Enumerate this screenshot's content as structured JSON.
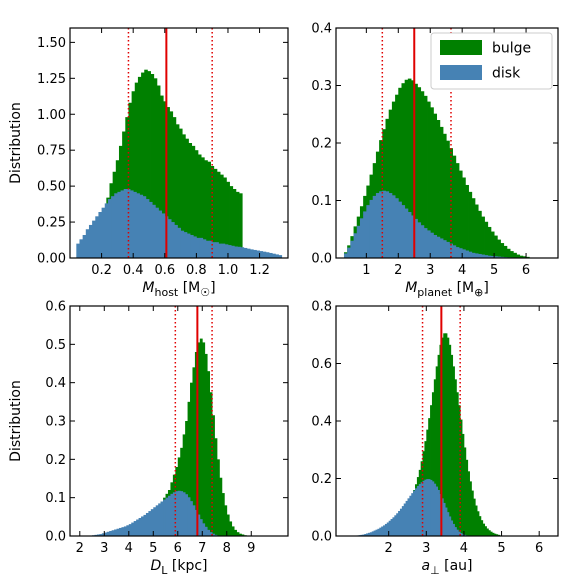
{
  "colors": {
    "bulge": "#008000",
    "disk": "#4682b4",
    "median": "#e00000",
    "frame": "#000000"
  },
  "legend": {
    "placement": "top-right",
    "entries": [
      "bulge",
      "disk"
    ]
  },
  "ylabel": "Distribution",
  "chart_data": [
    {
      "type": "bar",
      "xlabel_main": "M",
      "xlabel_sub": "host",
      "xlabel_tail": "[M",
      "xlabel_sym": "☉",
      "xlabel_end": "]",
      "xlim": [
        0.0,
        1.38
      ],
      "ylim": [
        0.0,
        1.6
      ],
      "xticks": [
        0.2,
        0.4,
        0.6,
        0.8,
        1.0,
        1.2
      ],
      "xticklabels": [
        "0.2",
        "0.4",
        "0.6",
        "0.8",
        "1.0",
        "1.2"
      ],
      "yticks": [
        0.0,
        0.25,
        0.5,
        0.75,
        1.0,
        1.25,
        1.5
      ],
      "yticklabels": [
        "0.00",
        "0.25",
        "0.50",
        "0.75",
        "1.00",
        "1.25",
        "1.50"
      ],
      "bin_width": 0.02,
      "bulge_x": [
        0.22,
        0.24,
        0.26,
        0.28,
        0.3,
        0.32,
        0.34,
        0.36,
        0.38,
        0.4,
        0.42,
        0.44,
        0.46,
        0.48,
        0.5,
        0.52,
        0.54,
        0.56,
        0.58,
        0.6,
        0.62,
        0.64,
        0.66,
        0.68,
        0.7,
        0.72,
        0.74,
        0.76,
        0.78,
        0.8,
        0.82,
        0.84,
        0.86,
        0.88,
        0.9,
        0.92,
        0.94,
        0.96,
        0.98,
        1.0,
        1.02,
        1.04,
        1.06,
        1.08
      ],
      "bulge_y": [
        0.3,
        0.42,
        0.52,
        0.6,
        0.68,
        0.78,
        0.88,
        0.98,
        1.08,
        1.16,
        1.22,
        1.26,
        1.29,
        1.31,
        1.3,
        1.28,
        1.25,
        1.2,
        1.13,
        1.09,
        1.05,
        1.02,
        0.98,
        0.93,
        0.9,
        0.86,
        0.83,
        0.8,
        0.78,
        0.75,
        0.72,
        0.7,
        0.68,
        0.67,
        0.64,
        0.62,
        0.6,
        0.58,
        0.56,
        0.53,
        0.5,
        0.48,
        0.46,
        0.45
      ],
      "disk_x": [
        0.05,
        0.07,
        0.09,
        0.11,
        0.13,
        0.15,
        0.17,
        0.19,
        0.21,
        0.23,
        0.25,
        0.27,
        0.29,
        0.31,
        0.33,
        0.35,
        0.37,
        0.39,
        0.41,
        0.43,
        0.45,
        0.47,
        0.49,
        0.51,
        0.53,
        0.55,
        0.57,
        0.59,
        0.61,
        0.63,
        0.65,
        0.67,
        0.69,
        0.71,
        0.73,
        0.75,
        0.77,
        0.79,
        0.81,
        0.83,
        0.85,
        0.87,
        0.89,
        0.91,
        0.93,
        0.95,
        0.97,
        0.99,
        1.01,
        1.03,
        1.05,
        1.07,
        1.09,
        1.11,
        1.13,
        1.15,
        1.17,
        1.19,
        1.21,
        1.23,
        1.25,
        1.27,
        1.29,
        1.31,
        1.33
      ],
      "disk_y": [
        0.1,
        0.13,
        0.16,
        0.2,
        0.23,
        0.26,
        0.29,
        0.32,
        0.35,
        0.38,
        0.41,
        0.43,
        0.45,
        0.46,
        0.47,
        0.48,
        0.48,
        0.47,
        0.46,
        0.45,
        0.44,
        0.43,
        0.41,
        0.39,
        0.37,
        0.35,
        0.33,
        0.31,
        0.29,
        0.27,
        0.25,
        0.23,
        0.21,
        0.19,
        0.18,
        0.17,
        0.16,
        0.15,
        0.14,
        0.14,
        0.13,
        0.12,
        0.12,
        0.11,
        0.11,
        0.1,
        0.1,
        0.095,
        0.09,
        0.085,
        0.08,
        0.078,
        0.075,
        0.07,
        0.065,
        0.06,
        0.056,
        0.052,
        0.048,
        0.044,
        0.04,
        0.035,
        0.03,
        0.025,
        0.02
      ],
      "median": 0.61,
      "percentiles": [
        0.37,
        0.9
      ]
    },
    {
      "type": "bar",
      "xlabel_main": "M",
      "xlabel_sub": "planet",
      "xlabel_tail": "[M",
      "xlabel_sym": "⊕",
      "xlabel_end": "]",
      "xlim": [
        0.05,
        7.0
      ],
      "ylim": [
        0.0,
        0.4
      ],
      "xticks": [
        1,
        2,
        3,
        4,
        5,
        6
      ],
      "xticklabels": [
        "1",
        "2",
        "3",
        "4",
        "5",
        "6"
      ],
      "yticks": [
        0.0,
        0.1,
        0.2,
        0.3,
        0.4
      ],
      "yticklabels": [
        "0.0",
        "0.1",
        "0.2",
        "0.3",
        "0.4"
      ],
      "bin_width": 0.1,
      "bulge_x": [
        0.35,
        0.45,
        0.55,
        0.65,
        0.75,
        0.85,
        0.95,
        1.05,
        1.15,
        1.25,
        1.35,
        1.45,
        1.55,
        1.65,
        1.75,
        1.85,
        1.95,
        2.05,
        2.15,
        2.25,
        2.35,
        2.45,
        2.55,
        2.65,
        2.75,
        2.85,
        2.95,
        3.05,
        3.15,
        3.25,
        3.35,
        3.45,
        3.55,
        3.65,
        3.75,
        3.85,
        3.95,
        4.05,
        4.15,
        4.25,
        4.35,
        4.45,
        4.55,
        4.65,
        4.75,
        4.85,
        4.95,
        5.05,
        5.15,
        5.25,
        5.35,
        5.45,
        5.55,
        5.65,
        5.75,
        5.85,
        5.95,
        6.05
      ],
      "bulge_y": [
        0.01,
        0.022,
        0.038,
        0.055,
        0.072,
        0.09,
        0.108,
        0.126,
        0.145,
        0.165,
        0.185,
        0.205,
        0.224,
        0.242,
        0.258,
        0.272,
        0.284,
        0.296,
        0.304,
        0.31,
        0.312,
        0.309,
        0.303,
        0.297,
        0.29,
        0.282,
        0.272,
        0.262,
        0.251,
        0.24,
        0.228,
        0.216,
        0.204,
        0.191,
        0.178,
        0.165,
        0.152,
        0.14,
        0.127,
        0.115,
        0.104,
        0.093,
        0.082,
        0.072,
        0.063,
        0.054,
        0.046,
        0.039,
        0.032,
        0.026,
        0.021,
        0.016,
        0.012,
        0.009,
        0.006,
        0.004,
        0.003,
        0.002
      ],
      "disk_x": [
        0.35,
        0.45,
        0.55,
        0.65,
        0.75,
        0.85,
        0.95,
        1.05,
        1.15,
        1.25,
        1.35,
        1.45,
        1.55,
        1.65,
        1.75,
        1.85,
        1.95,
        2.05,
        2.15,
        2.25,
        2.35,
        2.45,
        2.55,
        2.65,
        2.75,
        2.85,
        2.95,
        3.05,
        3.15,
        3.25,
        3.35,
        3.45,
        3.55,
        3.65,
        3.75,
        3.85,
        3.95,
        4.05,
        4.15,
        4.25,
        4.35,
        4.45,
        4.55,
        4.65,
        4.75,
        4.85,
        4.95,
        5.05,
        5.15,
        5.25,
        5.35,
        5.45,
        5.55,
        5.65,
        5.75
      ],
      "disk_y": [
        0.008,
        0.018,
        0.03,
        0.043,
        0.056,
        0.069,
        0.081,
        0.092,
        0.101,
        0.108,
        0.113,
        0.116,
        0.117,
        0.116,
        0.113,
        0.109,
        0.104,
        0.098,
        0.092,
        0.086,
        0.08,
        0.074,
        0.068,
        0.062,
        0.057,
        0.052,
        0.048,
        0.044,
        0.04,
        0.037,
        0.034,
        0.031,
        0.028,
        0.025,
        0.022,
        0.019,
        0.017,
        0.015,
        0.013,
        0.011,
        0.009,
        0.008,
        0.007,
        0.006,
        0.005,
        0.004,
        0.0035,
        0.003,
        0.0025,
        0.002,
        0.0015,
        0.0012,
        0.001,
        0.0008,
        0.0005
      ],
      "median": 2.5,
      "percentiles": [
        1.5,
        3.65
      ]
    },
    {
      "type": "bar",
      "xlabel_main": "D",
      "xlabel_sub": "L",
      "xlabel_tail": "[kpc]",
      "xlabel_sym": "",
      "xlabel_end": "",
      "xlim": [
        1.6,
        10.5
      ],
      "ylim": [
        0.0,
        0.6
      ],
      "xticks": [
        2,
        3,
        4,
        5,
        6,
        7,
        8,
        9
      ],
      "xticklabels": [
        "2",
        "3",
        "4",
        "5",
        "6",
        "7",
        "8",
        "9"
      ],
      "yticks": [
        0.0,
        0.1,
        0.2,
        0.3,
        0.4,
        0.5,
        0.6
      ],
      "yticklabels": [
        "0.0",
        "0.1",
        "0.2",
        "0.3",
        "0.4",
        "0.5",
        "0.6"
      ],
      "bin_width": 0.1,
      "bulge_x": [
        5.15,
        5.25,
        5.35,
        5.45,
        5.55,
        5.65,
        5.75,
        5.85,
        5.95,
        6.05,
        6.15,
        6.25,
        6.35,
        6.45,
        6.55,
        6.65,
        6.75,
        6.85,
        6.95,
        7.05,
        7.15,
        7.25,
        7.35,
        7.45,
        7.55,
        7.65,
        7.75,
        7.85,
        7.95,
        8.05,
        8.15,
        8.25,
        8.35,
        8.45,
        8.55,
        8.65,
        8.75,
        8.85,
        8.95
      ],
      "bulge_y": [
        0.07,
        0.08,
        0.09,
        0.1,
        0.11,
        0.12,
        0.14,
        0.16,
        0.18,
        0.205,
        0.23,
        0.265,
        0.3,
        0.35,
        0.4,
        0.44,
        0.48,
        0.505,
        0.515,
        0.505,
        0.475,
        0.43,
        0.375,
        0.315,
        0.255,
        0.2,
        0.152,
        0.112,
        0.08,
        0.056,
        0.038,
        0.025,
        0.016,
        0.01,
        0.006,
        0.004,
        0.002,
        0.0012,
        0.0006
      ],
      "disk_x": [
        2.45,
        2.55,
        2.65,
        2.75,
        2.85,
        2.95,
        3.05,
        3.15,
        3.25,
        3.35,
        3.45,
        3.55,
        3.65,
        3.75,
        3.85,
        3.95,
        4.05,
        4.15,
        4.25,
        4.35,
        4.45,
        4.55,
        4.65,
        4.75,
        4.85,
        4.95,
        5.05,
        5.15,
        5.25,
        5.35,
        5.45,
        5.55,
        5.65,
        5.75,
        5.85,
        5.95,
        6.05,
        6.15,
        6.25,
        6.35,
        6.45,
        6.55,
        6.65,
        6.75,
        6.85,
        6.95,
        7.05,
        7.15,
        7.25,
        7.35,
        7.45,
        7.55,
        7.65
      ],
      "disk_y": [
        0.001,
        0.002,
        0.003,
        0.004,
        0.005,
        0.007,
        0.009,
        0.011,
        0.013,
        0.015,
        0.017,
        0.019,
        0.021,
        0.023,
        0.025,
        0.028,
        0.031,
        0.035,
        0.039,
        0.043,
        0.047,
        0.051,
        0.055,
        0.06,
        0.065,
        0.07,
        0.075,
        0.08,
        0.085,
        0.09,
        0.095,
        0.1,
        0.105,
        0.11,
        0.114,
        0.117,
        0.118,
        0.117,
        0.114,
        0.109,
        0.101,
        0.091,
        0.08,
        0.068,
        0.056,
        0.044,
        0.033,
        0.024,
        0.016,
        0.01,
        0.006,
        0.003,
        0.001
      ],
      "median": 6.8,
      "percentiles": [
        5.9,
        7.4
      ]
    },
    {
      "type": "bar",
      "xlabel_main": "a",
      "xlabel_sub": "⊥",
      "xlabel_tail": "[au]",
      "xlabel_sym": "",
      "xlabel_end": "",
      "xlim": [
        0.6,
        6.5
      ],
      "ylim": [
        0.0,
        0.8
      ],
      "xticks": [
        2,
        3,
        4,
        5,
        6
      ],
      "xticklabels": [
        "2",
        "3",
        "4",
        "5",
        "6"
      ],
      "yticks": [
        0.0,
        0.2,
        0.4,
        0.6,
        0.8
      ],
      "yticklabels": [
        "0.0",
        "0.2",
        "0.4",
        "0.6",
        "0.8"
      ],
      "bin_width": 0.05,
      "bulge_x": [
        2.525,
        2.575,
        2.625,
        2.675,
        2.725,
        2.775,
        2.825,
        2.875,
        2.925,
        2.975,
        3.025,
        3.075,
        3.125,
        3.175,
        3.225,
        3.275,
        3.325,
        3.375,
        3.425,
        3.475,
        3.525,
        3.575,
        3.625,
        3.675,
        3.725,
        3.775,
        3.825,
        3.875,
        3.925,
        3.975,
        4.025,
        4.075,
        4.125,
        4.175,
        4.225,
        4.275,
        4.325,
        4.375,
        4.425,
        4.475,
        4.525,
        4.575,
        4.625,
        4.675,
        4.725,
        4.775,
        4.825,
        4.875,
        4.925,
        4.975
      ],
      "bulge_y": [
        0.1,
        0.12,
        0.14,
        0.16,
        0.18,
        0.205,
        0.23,
        0.26,
        0.295,
        0.33,
        0.37,
        0.41,
        0.455,
        0.5,
        0.545,
        0.59,
        0.63,
        0.665,
        0.69,
        0.705,
        0.705,
        0.69,
        0.665,
        0.63,
        0.59,
        0.545,
        0.5,
        0.455,
        0.405,
        0.355,
        0.308,
        0.265,
        0.225,
        0.19,
        0.158,
        0.13,
        0.106,
        0.086,
        0.069,
        0.055,
        0.043,
        0.034,
        0.026,
        0.02,
        0.015,
        0.011,
        0.008,
        0.006,
        0.004,
        0.002
      ],
      "disk_x": [
        1.125,
        1.175,
        1.225,
        1.275,
        1.325,
        1.375,
        1.425,
        1.475,
        1.525,
        1.575,
        1.625,
        1.675,
        1.725,
        1.775,
        1.825,
        1.875,
        1.925,
        1.975,
        2.025,
        2.075,
        2.125,
        2.175,
        2.225,
        2.275,
        2.325,
        2.375,
        2.425,
        2.475,
        2.525,
        2.575,
        2.625,
        2.675,
        2.725,
        2.775,
        2.825,
        2.875,
        2.925,
        2.975,
        3.025,
        3.075,
        3.125,
        3.175,
        3.225,
        3.275,
        3.325,
        3.375,
        3.425,
        3.475,
        3.525,
        3.575,
        3.625,
        3.675,
        3.725,
        3.775,
        3.825,
        3.875,
        3.925,
        3.975,
        4.025,
        4.075,
        4.125,
        4.175
      ],
      "disk_y": [
        0.001,
        0.002,
        0.003,
        0.004,
        0.005,
        0.007,
        0.009,
        0.011,
        0.013,
        0.016,
        0.019,
        0.022,
        0.025,
        0.029,
        0.033,
        0.037,
        0.042,
        0.047,
        0.053,
        0.059,
        0.065,
        0.072,
        0.079,
        0.087,
        0.095,
        0.104,
        0.113,
        0.122,
        0.131,
        0.14,
        0.149,
        0.158,
        0.166,
        0.174,
        0.181,
        0.187,
        0.192,
        0.196,
        0.198,
        0.198,
        0.195,
        0.19,
        0.182,
        0.172,
        0.16,
        0.146,
        0.131,
        0.115,
        0.099,
        0.083,
        0.068,
        0.054,
        0.042,
        0.031,
        0.022,
        0.015,
        0.01,
        0.006,
        0.004,
        0.002,
        0.001,
        0.0005
      ],
      "median": 3.4,
      "percentiles": [
        2.9,
        3.9
      ]
    }
  ]
}
